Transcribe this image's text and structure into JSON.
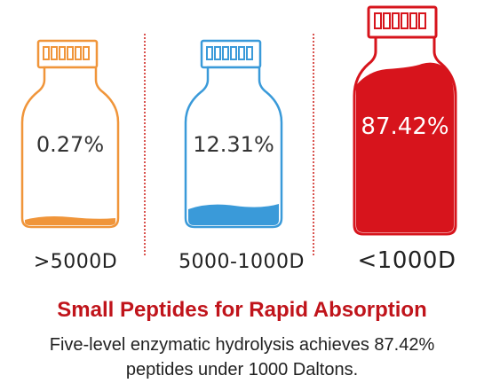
{
  "colors": {
    "orange": "#f0953a",
    "blue": "#3a9ad9",
    "red": "#d7141c",
    "headline": "#c0141b",
    "divider": "#d9534f"
  },
  "bottles": [
    {
      "percent_label": "0.27%",
      "range_label": ">5000D",
      "fill_fraction": 0.0027
    },
    {
      "percent_label": "12.31%",
      "range_label": "5000-1000D",
      "fill_fraction": 0.1231
    },
    {
      "percent_label": "87.42%",
      "range_label": "<1000D",
      "fill_fraction": 0.8742
    }
  ],
  "headline": "Small Peptides for Rapid Absorption",
  "description": {
    "line1": "Five-level enzymatic hydrolysis achieves 87.42%",
    "line2": "peptides under 1000 Daltons."
  }
}
